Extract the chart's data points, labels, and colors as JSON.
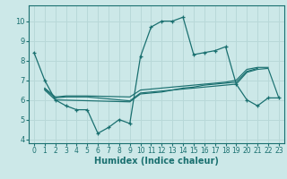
{
  "xlabel": "Humidex (Indice chaleur)",
  "bg_color": "#cce8e8",
  "line_color": "#1a7070",
  "grid_color": "#b8d8d8",
  "xlim": [
    -0.5,
    23.5
  ],
  "ylim": [
    3.8,
    10.8
  ],
  "yticks": [
    4,
    5,
    6,
    7,
    8,
    9,
    10
  ],
  "xticks": [
    0,
    1,
    2,
    3,
    4,
    5,
    6,
    7,
    8,
    9,
    10,
    11,
    12,
    13,
    14,
    15,
    16,
    17,
    18,
    19,
    20,
    21,
    22,
    23
  ],
  "main_x": [
    0,
    1,
    2,
    3,
    4,
    5,
    6,
    7,
    8,
    9,
    10,
    11,
    12,
    13,
    14,
    15,
    16,
    17,
    18,
    19,
    20,
    21,
    22,
    23
  ],
  "main_y": [
    8.4,
    7.0,
    6.0,
    5.7,
    5.5,
    5.5,
    4.3,
    4.6,
    5.0,
    4.8,
    8.2,
    9.7,
    10.0,
    10.0,
    10.2,
    8.3,
    8.4,
    8.5,
    8.7,
    6.8,
    6.0,
    5.7,
    6.1,
    6.1
  ],
  "line2_x": [
    1,
    2,
    3,
    4,
    5,
    9,
    10,
    11,
    12,
    13,
    14,
    15,
    16,
    17,
    18,
    19,
    20,
    21,
    22
  ],
  "line2_y": [
    6.6,
    6.15,
    6.2,
    6.2,
    6.2,
    6.15,
    6.5,
    6.55,
    6.6,
    6.65,
    6.7,
    6.75,
    6.8,
    6.85,
    6.9,
    7.0,
    7.55,
    7.65,
    7.65
  ],
  "line3_x": [
    1,
    2,
    3,
    4,
    5,
    9,
    10,
    11,
    12,
    13,
    14,
    15,
    16,
    17,
    18,
    19,
    20,
    21
  ],
  "line3_y": [
    6.55,
    6.1,
    6.15,
    6.15,
    6.15,
    5.95,
    6.35,
    6.4,
    6.45,
    6.5,
    6.6,
    6.65,
    6.75,
    6.8,
    6.85,
    6.9,
    7.45,
    7.6
  ],
  "line4_x": [
    1,
    2,
    9,
    10,
    11,
    12,
    13,
    14,
    15,
    16,
    17,
    18,
    19,
    20,
    21,
    22,
    23
  ],
  "line4_y": [
    6.5,
    6.0,
    5.9,
    6.3,
    6.35,
    6.4,
    6.5,
    6.55,
    6.6,
    6.65,
    6.7,
    6.75,
    6.8,
    7.4,
    7.55,
    7.6,
    6.1
  ]
}
